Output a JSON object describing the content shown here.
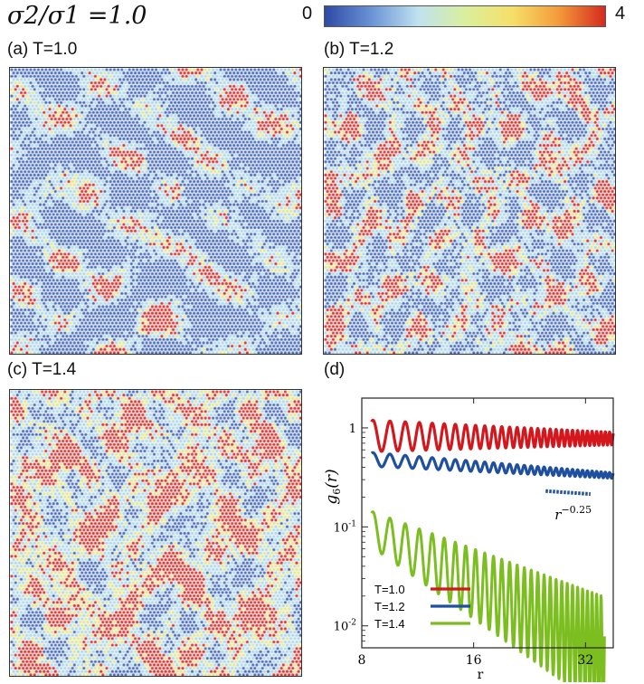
{
  "figure": {
    "title": "σ2/σ1 =1.0",
    "colorbar": {
      "min": "0",
      "max": "4",
      "colors": [
        "#2e4aa6",
        "#6a93d6",
        "#bfe2ef",
        "#d9ef9d",
        "#f6e06a",
        "#f39b3a",
        "#d62a1e"
      ]
    }
  },
  "panels": [
    {
      "label": "(a) T=1.0",
      "T": 1.0,
      "mix": {
        "blue": 0.55,
        "cyan": 0.3,
        "yellow": 0.1,
        "red": 0.05
      }
    },
    {
      "label": "(b) T=1.2",
      "T": 1.2,
      "mix": {
        "blue": 0.4,
        "cyan": 0.25,
        "yellow": 0.1,
        "red": 0.25
      }
    },
    {
      "label": "(c) T=1.4",
      "T": 1.4,
      "mix": {
        "blue": 0.25,
        "cyan": 0.25,
        "yellow": 0.15,
        "red": 0.35
      }
    }
  ],
  "chart_data": {
    "panel_label": "(d)",
    "type": "line",
    "xlabel": "r",
    "ylabel": "g6(r)",
    "xscale": "log",
    "yscale": "log",
    "xlim": [
      8,
      38
    ],
    "ylim": [
      0.006,
      2
    ],
    "xticks": [
      8,
      16,
      32
    ],
    "yticks": [
      {
        "value": 1,
        "label": "1"
      },
      {
        "value": 0.1,
        "label": "10-1"
      },
      {
        "value": 0.01,
        "label": "10-2"
      }
    ],
    "series": [
      {
        "name": "T=1.0",
        "color": "#d4161d",
        "envelope": [
          0.83,
          0.78
        ],
        "amp": 0.16,
        "x": [
          8.5,
          38
        ]
      },
      {
        "name": "T=1.2",
        "color": "#1f4f9f",
        "envelope": [
          0.48,
          0.33
        ],
        "amp": 0.07,
        "x": [
          8.5,
          38
        ]
      },
      {
        "name": "T=1.4",
        "color": "#7cbd1f",
        "envelope": [
          0.095,
          0.0052
        ],
        "amp": 0.18,
        "x": [
          8.5,
          36
        ]
      }
    ],
    "reference_line": {
      "label": "r^-0.25",
      "exponent": -0.25,
      "x": [
        25,
        33
      ],
      "y_start": 0.23,
      "color": "#1f4f9f"
    },
    "legend_position": "bottom-left"
  }
}
